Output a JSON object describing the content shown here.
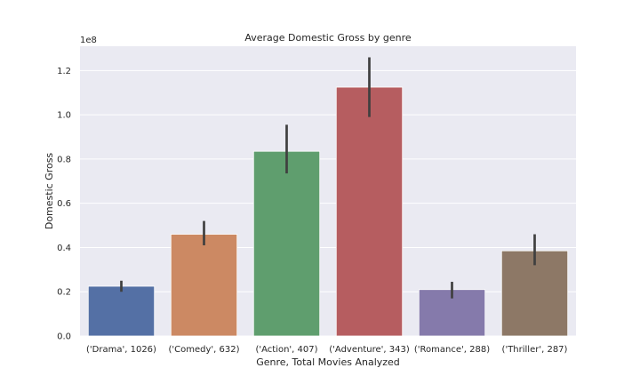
{
  "chart_data": {
    "type": "bar",
    "title": "Average Domestic Gross by genre",
    "xlabel": "Genre, Total Movies Analyzed",
    "ylabel": "Domestic Gross",
    "y_offset_label": "1e8",
    "y_scale_factor": 100000000,
    "ylim": [
      0,
      1.31
    ],
    "yticks": [
      0.0,
      0.2,
      0.4,
      0.6,
      0.8,
      1.0,
      1.2
    ],
    "ytick_labels": [
      "0.0",
      "0.2",
      "0.4",
      "0.6",
      "0.8",
      "1.0",
      "1.2"
    ],
    "grid": true,
    "categories": [
      "('Drama', 1026)",
      "('Comedy', 632)",
      "('Action', 407)",
      "('Adventure', 343)",
      "('Romance', 288)",
      "('Thriller', 287)"
    ],
    "values": [
      0.225,
      0.46,
      0.835,
      1.125,
      0.21,
      0.385
    ],
    "error_low": [
      0.2,
      0.41,
      0.735,
      0.99,
      0.17,
      0.32
    ],
    "error_high": [
      0.25,
      0.52,
      0.955,
      1.26,
      0.245,
      0.46
    ],
    "colors": [
      "#5470a5",
      "#cc8963",
      "#5f9e6e",
      "#b65d60",
      "#857aab",
      "#8d7866"
    ],
    "background_color": "#eaeaf2",
    "grid_color": "#ffffff",
    "error_bar_color": "#3f3f3f"
  }
}
